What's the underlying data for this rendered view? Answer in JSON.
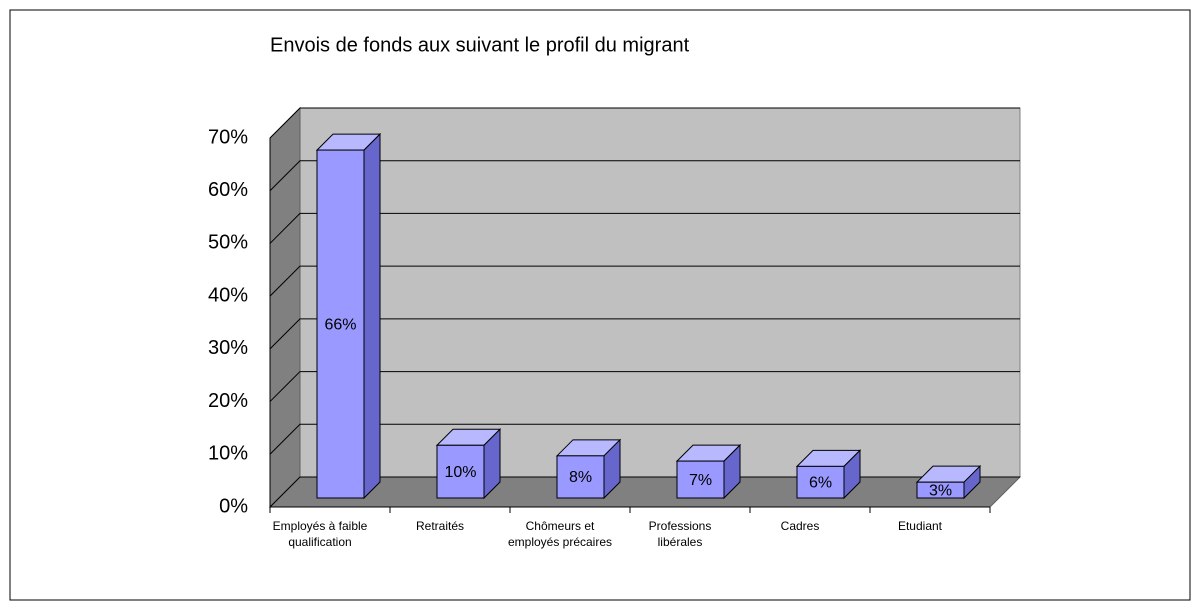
{
  "chart_data": {
    "type": "bar3d",
    "title": "Envois de fonds aux suivant le profil du migrant",
    "categories": [
      "Employés à faible qualification",
      "Retraités",
      "Chômeurs et employés précaires",
      "Professions libérales",
      "Cadres",
      "Etudiant"
    ],
    "values": [
      66,
      10,
      8,
      7,
      6,
      3
    ],
    "value_labels": [
      "66%",
      "10%",
      "8%",
      "7%",
      "6%",
      "3%"
    ],
    "color": "#9999ff",
    "ylim": [
      0,
      70
    ],
    "yticks": [
      {
        "value": 0,
        "label": "0%"
      },
      {
        "value": 10,
        "label": "10%"
      },
      {
        "value": 20,
        "label": "20%"
      },
      {
        "value": 30,
        "label": "30%"
      },
      {
        "value": 40,
        "label": "40%"
      },
      {
        "value": 50,
        "label": "50%"
      },
      {
        "value": 60,
        "label": "60%"
      },
      {
        "value": 70,
        "label": "70%"
      }
    ],
    "grid": true
  }
}
